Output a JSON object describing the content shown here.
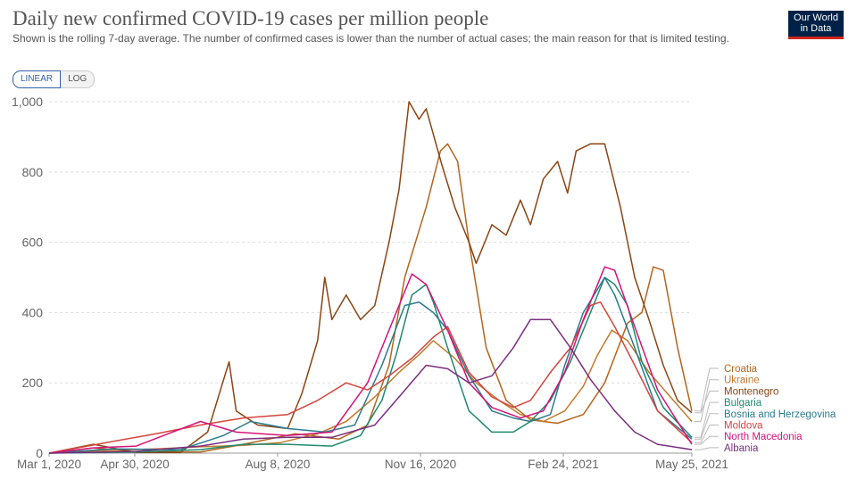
{
  "header": {
    "title": "Daily new confirmed COVID-19 cases per million people",
    "subtitle": "Shown is the rolling 7-day average. The number of confirmed cases is lower than the number of actual cases; the main reason for that is limited testing.",
    "logo_line1": "Our World",
    "logo_line2": "in Data"
  },
  "controls": {
    "linear_label": "LINEAR",
    "log_label": "LOG",
    "selected": "LINEAR"
  },
  "chart_data": {
    "type": "line",
    "title": "Daily new confirmed COVID-19 cases per million people",
    "x_type": "date",
    "xlim": [
      "2020-03-01",
      "2021-05-25"
    ],
    "ylim": [
      0,
      1000
    ],
    "yticks": [
      0,
      200,
      400,
      600,
      800,
      1000
    ],
    "ytick_labels": [
      "0",
      "200",
      "400",
      "600",
      "800",
      "1,000"
    ],
    "xticks": [
      "2020-03-01",
      "2020-04-30",
      "2020-08-08",
      "2020-11-16",
      "2021-02-24",
      "2021-05-25"
    ],
    "xtick_labels": [
      "Mar 1, 2020",
      "Apr 30, 2020",
      "Aug 8, 2020",
      "Nov 16, 2020",
      "Feb 24, 2021",
      "May 25, 2021"
    ],
    "grid": true,
    "legend": "right (direct labels at line ends)",
    "series": [
      {
        "name": "Croatia",
        "color": "#b5651d",
        "points": [
          [
            "2020-03-01",
            0
          ],
          [
            "2020-04-01",
            15
          ],
          [
            "2020-05-01",
            3
          ],
          [
            "2020-06-15",
            3
          ],
          [
            "2020-07-15",
            25
          ],
          [
            "2020-08-20",
            55
          ],
          [
            "2020-09-20",
            40
          ],
          [
            "2020-10-10",
            80
          ],
          [
            "2020-10-25",
            250
          ],
          [
            "2020-11-05",
            500
          ],
          [
            "2020-11-20",
            700
          ],
          [
            "2020-11-30",
            860
          ],
          [
            "2020-12-05",
            880
          ],
          [
            "2020-12-12",
            830
          ],
          [
            "2020-12-20",
            600
          ],
          [
            "2021-01-01",
            300
          ],
          [
            "2021-01-15",
            150
          ],
          [
            "2021-02-01",
            95
          ],
          [
            "2021-02-20",
            85
          ],
          [
            "2021-03-10",
            110
          ],
          [
            "2021-03-25",
            200
          ],
          [
            "2021-04-10",
            370
          ],
          [
            "2021-04-20",
            400
          ],
          [
            "2021-04-28",
            530
          ],
          [
            "2021-05-05",
            520
          ],
          [
            "2021-05-15",
            300
          ],
          [
            "2021-05-25",
            120
          ]
        ]
      },
      {
        "name": "Ukraine",
        "color": "#c47a2c",
        "points": [
          [
            "2020-03-01",
            0
          ],
          [
            "2020-04-15",
            8
          ],
          [
            "2020-05-15",
            12
          ],
          [
            "2020-06-15",
            18
          ],
          [
            "2020-07-15",
            22
          ],
          [
            "2020-08-10",
            30
          ],
          [
            "2020-09-05",
            55
          ],
          [
            "2020-09-25",
            90
          ],
          [
            "2020-10-15",
            160
          ],
          [
            "2020-11-01",
            230
          ],
          [
            "2020-11-15",
            280
          ],
          [
            "2020-11-25",
            320
          ],
          [
            "2020-12-10",
            270
          ],
          [
            "2020-12-25",
            200
          ],
          [
            "2021-01-10",
            150
          ],
          [
            "2021-01-25",
            110
          ],
          [
            "2021-02-10",
            90
          ],
          [
            "2021-02-25",
            120
          ],
          [
            "2021-03-10",
            190
          ],
          [
            "2021-03-20",
            280
          ],
          [
            "2021-03-30",
            350
          ],
          [
            "2021-04-10",
            320
          ],
          [
            "2021-04-25",
            230
          ],
          [
            "2021-05-10",
            160
          ],
          [
            "2021-05-25",
            90
          ]
        ]
      },
      {
        "name": "Montenegro",
        "color": "#8b4513",
        "points": [
          [
            "2020-03-01",
            0
          ],
          [
            "2020-04-01",
            25
          ],
          [
            "2020-05-01",
            2
          ],
          [
            "2020-06-01",
            2
          ],
          [
            "2020-06-20",
            60
          ],
          [
            "2020-07-05",
            260
          ],
          [
            "2020-07-10",
            120
          ],
          [
            "2020-07-25",
            80
          ],
          [
            "2020-08-15",
            70
          ],
          [
            "2020-08-25",
            170
          ],
          [
            "2020-09-05",
            320
          ],
          [
            "2020-09-10",
            500
          ],
          [
            "2020-09-15",
            380
          ],
          [
            "2020-09-25",
            450
          ],
          [
            "2020-10-05",
            380
          ],
          [
            "2020-10-15",
            420
          ],
          [
            "2020-10-25",
            600
          ],
          [
            "2020-11-01",
            750
          ],
          [
            "2020-11-08",
            1000
          ],
          [
            "2020-11-15",
            950
          ],
          [
            "2020-11-20",
            980
          ],
          [
            "2020-12-01",
            820
          ],
          [
            "2020-12-10",
            700
          ],
          [
            "2020-12-20",
            600
          ],
          [
            "2020-12-25",
            540
          ],
          [
            "2021-01-05",
            650
          ],
          [
            "2021-01-15",
            620
          ],
          [
            "2021-01-25",
            720
          ],
          [
            "2021-02-01",
            650
          ],
          [
            "2021-02-10",
            780
          ],
          [
            "2021-02-20",
            830
          ],
          [
            "2021-02-27",
            740
          ],
          [
            "2021-03-05",
            860
          ],
          [
            "2021-03-15",
            880
          ],
          [
            "2021-03-25",
            880
          ],
          [
            "2021-04-05",
            700
          ],
          [
            "2021-04-15",
            500
          ],
          [
            "2021-04-25",
            380
          ],
          [
            "2021-05-05",
            250
          ],
          [
            "2021-05-15",
            150
          ],
          [
            "2021-05-25",
            115
          ]
        ]
      },
      {
        "name": "Bulgaria",
        "color": "#1e8a6e",
        "points": [
          [
            "2020-03-01",
            0
          ],
          [
            "2020-05-01",
            3
          ],
          [
            "2020-06-15",
            10
          ],
          [
            "2020-07-15",
            25
          ],
          [
            "2020-08-15",
            25
          ],
          [
            "2020-09-15",
            20
          ],
          [
            "2020-10-05",
            50
          ],
          [
            "2020-10-20",
            150
          ],
          [
            "2020-10-30",
            280
          ],
          [
            "2020-11-10",
            450
          ],
          [
            "2020-11-20",
            480
          ],
          [
            "2020-11-25",
            430
          ],
          [
            "2020-12-05",
            300
          ],
          [
            "2020-12-20",
            120
          ],
          [
            "2021-01-05",
            60
          ],
          [
            "2021-01-20",
            60
          ],
          [
            "2021-02-01",
            90
          ],
          [
            "2021-02-15",
            150
          ],
          [
            "2021-03-01",
            260
          ],
          [
            "2021-03-15",
            400
          ],
          [
            "2021-03-25",
            500
          ],
          [
            "2021-04-01",
            480
          ],
          [
            "2021-04-10",
            420
          ],
          [
            "2021-04-20",
            260
          ],
          [
            "2021-05-05",
            130
          ],
          [
            "2021-05-25",
            45
          ]
        ]
      },
      {
        "name": "Bosnia and Herzegovina",
        "color": "#2a7b8e",
        "points": [
          [
            "2020-03-01",
            0
          ],
          [
            "2020-04-15",
            12
          ],
          [
            "2020-06-01",
            10
          ],
          [
            "2020-07-01",
            50
          ],
          [
            "2020-07-20",
            90
          ],
          [
            "2020-08-15",
            70
          ],
          [
            "2020-09-10",
            60
          ],
          [
            "2020-10-01",
            80
          ],
          [
            "2020-10-20",
            250
          ],
          [
            "2020-11-05",
            420
          ],
          [
            "2020-11-15",
            430
          ],
          [
            "2020-11-25",
            400
          ],
          [
            "2020-12-05",
            350
          ],
          [
            "2020-12-20",
            220
          ],
          [
            "2021-01-05",
            120
          ],
          [
            "2021-01-20",
            100
          ],
          [
            "2021-02-01",
            90
          ],
          [
            "2021-02-15",
            110
          ],
          [
            "2021-02-25",
            250
          ],
          [
            "2021-03-10",
            400
          ],
          [
            "2021-03-25",
            500
          ],
          [
            "2021-04-01",
            450
          ],
          [
            "2021-04-15",
            300
          ],
          [
            "2021-05-01",
            120
          ],
          [
            "2021-05-25",
            40
          ]
        ]
      },
      {
        "name": "Moldova",
        "color": "#d6443d",
        "points": [
          [
            "2020-03-01",
            0
          ],
          [
            "2020-04-10",
            30
          ],
          [
            "2020-05-15",
            55
          ],
          [
            "2020-06-15",
            80
          ],
          [
            "2020-07-15",
            100
          ],
          [
            "2020-08-15",
            110
          ],
          [
            "2020-09-05",
            150
          ],
          [
            "2020-09-25",
            200
          ],
          [
            "2020-10-10",
            180
          ],
          [
            "2020-10-25",
            220
          ],
          [
            "2020-11-10",
            270
          ],
          [
            "2020-11-25",
            330
          ],
          [
            "2020-12-05",
            360
          ],
          [
            "2020-12-20",
            230
          ],
          [
            "2021-01-05",
            160
          ],
          [
            "2021-01-20",
            130
          ],
          [
            "2021-02-01",
            150
          ],
          [
            "2021-02-15",
            230
          ],
          [
            "2021-03-01",
            300
          ],
          [
            "2021-03-15",
            420
          ],
          [
            "2021-03-22",
            430
          ],
          [
            "2021-04-01",
            360
          ],
          [
            "2021-04-15",
            250
          ],
          [
            "2021-05-01",
            120
          ],
          [
            "2021-05-25",
            30
          ]
        ]
      },
      {
        "name": "North Macedonia",
        "color": "#d4147a",
        "points": [
          [
            "2020-03-01",
            0
          ],
          [
            "2020-04-01",
            15
          ],
          [
            "2020-05-01",
            20
          ],
          [
            "2020-05-20",
            50
          ],
          [
            "2020-06-15",
            90
          ],
          [
            "2020-07-10",
            60
          ],
          [
            "2020-08-15",
            50
          ],
          [
            "2020-09-15",
            60
          ],
          [
            "2020-10-10",
            200
          ],
          [
            "2020-10-30",
            400
          ],
          [
            "2020-11-10",
            510
          ],
          [
            "2020-11-20",
            480
          ],
          [
            "2020-12-05",
            350
          ],
          [
            "2020-12-20",
            200
          ],
          [
            "2021-01-05",
            130
          ],
          [
            "2021-01-25",
            100
          ],
          [
            "2021-02-10",
            120
          ],
          [
            "2021-02-25",
            230
          ],
          [
            "2021-03-10",
            380
          ],
          [
            "2021-03-25",
            530
          ],
          [
            "2021-04-01",
            520
          ],
          [
            "2021-04-15",
            360
          ],
          [
            "2021-05-01",
            180
          ],
          [
            "2021-05-25",
            25
          ]
        ]
      },
      {
        "name": "Albania",
        "color": "#7a2e7f",
        "points": [
          [
            "2020-03-01",
            0
          ],
          [
            "2020-05-01",
            5
          ],
          [
            "2020-06-15",
            20
          ],
          [
            "2020-07-15",
            40
          ],
          [
            "2020-08-15",
            45
          ],
          [
            "2020-09-15",
            45
          ],
          [
            "2020-10-15",
            80
          ],
          [
            "2020-11-01",
            160
          ],
          [
            "2020-11-20",
            250
          ],
          [
            "2020-12-05",
            240
          ],
          [
            "2020-12-20",
            200
          ],
          [
            "2021-01-05",
            220
          ],
          [
            "2021-01-20",
            300
          ],
          [
            "2021-02-01",
            380
          ],
          [
            "2021-02-15",
            380
          ],
          [
            "2021-03-01",
            300
          ],
          [
            "2021-03-15",
            210
          ],
          [
            "2021-04-01",
            120
          ],
          [
            "2021-04-15",
            60
          ],
          [
            "2021-05-01",
            25
          ],
          [
            "2021-05-25",
            10
          ]
        ]
      }
    ]
  }
}
